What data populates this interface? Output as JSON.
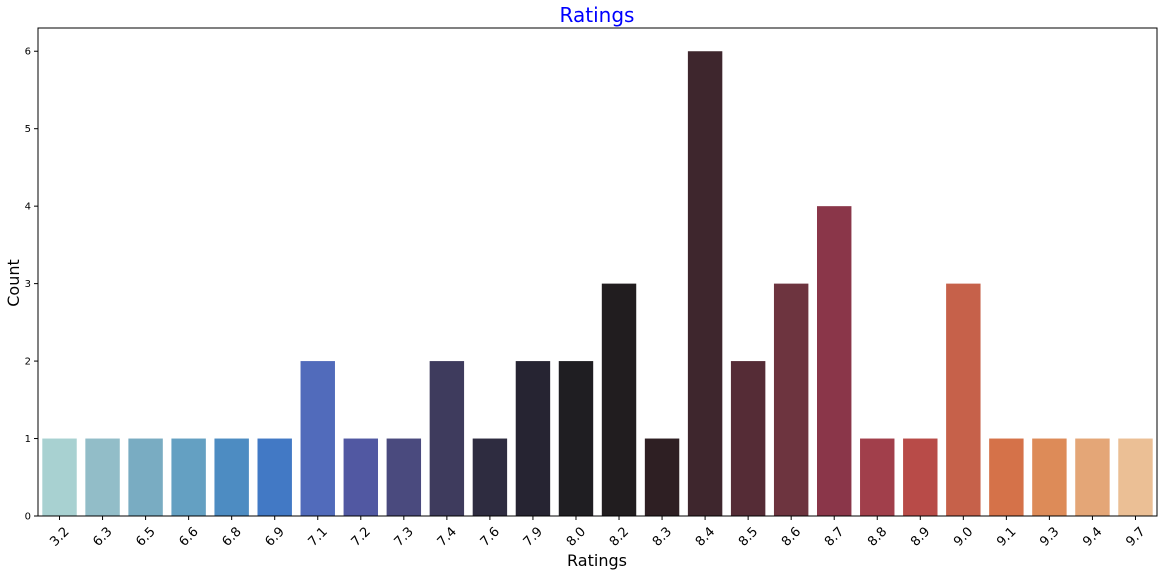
{
  "chart_data": {
    "type": "bar",
    "title": "Ratings",
    "xlabel": "Ratings",
    "ylabel": "Count",
    "categories": [
      "3.2",
      "6.3",
      "6.5",
      "6.6",
      "6.8",
      "6.9",
      "7.1",
      "7.2",
      "7.3",
      "7.4",
      "7.6",
      "7.9",
      "8.0",
      "8.2",
      "8.3",
      "8.4",
      "8.5",
      "8.6",
      "8.7",
      "8.8",
      "8.9",
      "9.0",
      "9.1",
      "9.3",
      "9.4",
      "9.7"
    ],
    "values": [
      1,
      1,
      1,
      1,
      1,
      1,
      2,
      1,
      1,
      2,
      1,
      2,
      2,
      3,
      1,
      6,
      2,
      3,
      4,
      1,
      1,
      3,
      1,
      1,
      1,
      1
    ],
    "colors": [
      "#a8d1d1",
      "#92bdc8",
      "#79acc2",
      "#64a0c2",
      "#4d8cc2",
      "#4279c5",
      "#516bbb",
      "#5158a2",
      "#4a4a7e",
      "#3e3b5d",
      "#2e2c40",
      "#262432",
      "#1f1e22",
      "#211d1f",
      "#2e1f23",
      "#3e262d",
      "#552c36",
      "#6d343f",
      "#8a3649",
      "#a13f4b",
      "#b84b48",
      "#c6614a",
      "#d57249",
      "#dd8b58",
      "#e4a677",
      "#ebbf95"
    ],
    "title_color": "#0000ff",
    "ylim": [
      0,
      6.3
    ],
    "yticks": [
      "0",
      "1",
      "2",
      "3",
      "4",
      "5",
      "6"
    ],
    "grid": false,
    "legend": "none"
  }
}
